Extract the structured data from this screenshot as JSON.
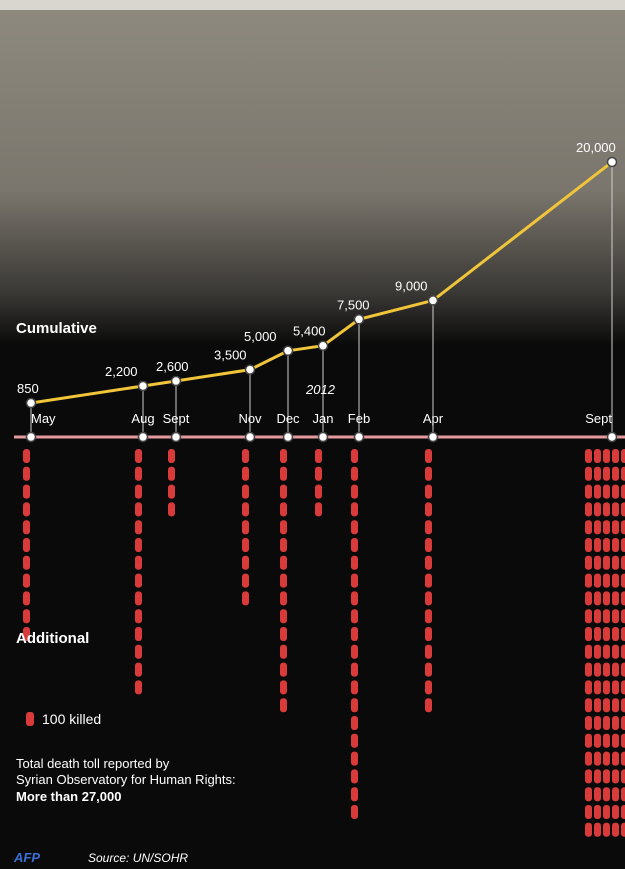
{
  "chart_data": {
    "type": "line",
    "series_label": "Cumulative",
    "bars_label": "Additional",
    "year_marker": "2012",
    "categories": [
      "May",
      "Aug",
      "Sept",
      "Nov",
      "Dec",
      "Jan",
      "Feb",
      "Apr",
      "Sept"
    ],
    "cumulative": [
      850,
      2200,
      2600,
      3500,
      5000,
      5400,
      7500,
      9000,
      20000
    ],
    "cumulative_labels": [
      "850",
      "2,200",
      "2,600",
      "3,500",
      "5,000",
      "5,400",
      "7,500",
      "9,000",
      "20,000"
    ],
    "additional_units": [
      11,
      14,
      4,
      9,
      15,
      4,
      21,
      15,
      22
    ],
    "additional_unit_label": "100 killed",
    "colors": {
      "line": "#f0c53a",
      "bar": "#d93b3b",
      "timeline": "#e59aa0",
      "marker_fill": "#ffffff"
    }
  },
  "footer": {
    "total_line1": "Total death toll reported by",
    "total_line2": "Syrian Observatory for Human Rights:",
    "total_line3": "More than 27,000",
    "logo_text": "AFP",
    "source": "Source: UN/SOHR"
  }
}
